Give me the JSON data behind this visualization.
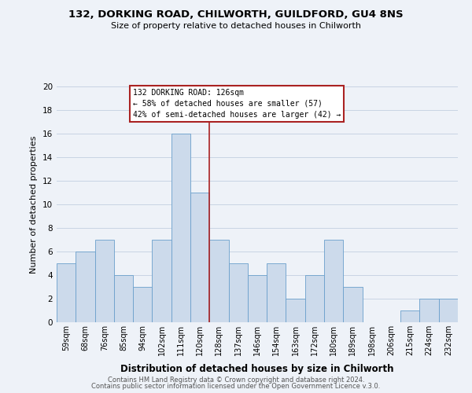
{
  "title1": "132, DORKING ROAD, CHILWORTH, GUILDFORD, GU4 8NS",
  "title2": "Size of property relative to detached houses in Chilworth",
  "xlabel": "Distribution of detached houses by size in Chilworth",
  "ylabel": "Number of detached properties",
  "bar_labels": [
    "59sqm",
    "68sqm",
    "76sqm",
    "85sqm",
    "94sqm",
    "102sqm",
    "111sqm",
    "120sqm",
    "128sqm",
    "137sqm",
    "146sqm",
    "154sqm",
    "163sqm",
    "172sqm",
    "180sqm",
    "189sqm",
    "198sqm",
    "206sqm",
    "215sqm",
    "224sqm",
    "232sqm"
  ],
  "bar_values": [
    5,
    6,
    7,
    4,
    3,
    7,
    16,
    11,
    7,
    5,
    4,
    5,
    2,
    4,
    7,
    3,
    0,
    0,
    1,
    2,
    2
  ],
  "bar_color": "#ccdaeb",
  "bar_edge_color": "#6a9fcb",
  "grid_color": "#c8d4e4",
  "annotation_title": "132 DORKING ROAD: 126sqm",
  "annotation_line1": "← 58% of detached houses are smaller (57)",
  "annotation_line2": "42% of semi-detached houses are larger (42) →",
  "vline_color": "#aa2222",
  "annotation_box_color": "#ffffff",
  "annotation_box_edge": "#aa2222",
  "footer1": "Contains HM Land Registry data © Crown copyright and database right 2024.",
  "footer2": "Contains public sector information licensed under the Open Government Licence v.3.0.",
  "ylim": [
    0,
    20
  ],
  "yticks": [
    0,
    2,
    4,
    6,
    8,
    10,
    12,
    14,
    16,
    18,
    20
  ],
  "bg_color": "#eef2f8"
}
